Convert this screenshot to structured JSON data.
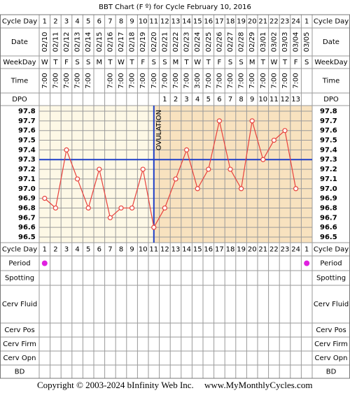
{
  "chart_data": {
    "type": "line",
    "title": "BBT Chart (F º) for Cycle February 10, 2016",
    "row_labels": {
      "cycle_day": "Cycle Day",
      "date": "Date",
      "weekday": "WeekDay",
      "time": "Time",
      "dpo": "DPO",
      "period": "Period",
      "spotting": "Spotting",
      "cerv_fluid": "Cerv Fluid",
      "cerv_pos": "Cerv Pos",
      "cerv_firm": "Cerv Firm",
      "cerv_opn": "Cerv Opn",
      "bd": "BD"
    },
    "categories": [
      1,
      2,
      3,
      4,
      5,
      6,
      7,
      8,
      9,
      10,
      11,
      12,
      13,
      14,
      15,
      16,
      17,
      18,
      19,
      20,
      21,
      22,
      23,
      24,
      1
    ],
    "dates": [
      "02/10",
      "02/11",
      "02/12",
      "02/13",
      "02/14",
      "02/15",
      "02/16",
      "02/17",
      "02/18",
      "02/19",
      "02/20",
      "02/21",
      "02/22",
      "02/23",
      "02/24",
      "02/25",
      "02/26",
      "02/27",
      "02/28",
      "02/29",
      "03/01",
      "03/02",
      "03/03",
      "03/04",
      "03/05"
    ],
    "weekdays": [
      "W",
      "T",
      "F",
      "S",
      "S",
      "M",
      "T",
      "W",
      "T",
      "F",
      "S",
      "S",
      "M",
      "T",
      "W",
      "T",
      "F",
      "S",
      "S",
      "M",
      "T",
      "W",
      "T",
      "F",
      "S"
    ],
    "times": [
      "7:00",
      "7:00",
      "7:00",
      "7:00",
      "7:00",
      null,
      "7:00",
      "7:00",
      "7:00",
      "7:00",
      "7:00",
      "7:00",
      "7:00",
      "7:00",
      "3:00",
      "7:00",
      "7:00",
      "7:00",
      "7:00",
      "7:00",
      "7:00",
      "7:00",
      "7:00",
      "7:00",
      null
    ],
    "dpo": [
      null,
      null,
      null,
      null,
      null,
      null,
      null,
      null,
      null,
      null,
      null,
      1,
      2,
      3,
      4,
      5,
      6,
      7,
      8,
      9,
      10,
      11,
      12,
      13,
      null
    ],
    "values": [
      96.9,
      96.8,
      97.4,
      97.1,
      96.8,
      97.2,
      96.7,
      96.8,
      96.8,
      97.2,
      96.6,
      96.8,
      97.1,
      97.4,
      97.0,
      97.2,
      97.7,
      97.2,
      97.0,
      97.7,
      97.3,
      97.5,
      97.6,
      97.0,
      null
    ],
    "color": "#e8413c",
    "ylim": [
      96.5,
      97.8
    ],
    "yticks": [
      97.8,
      97.7,
      97.6,
      97.5,
      97.4,
      97.3,
      97.2,
      97.1,
      {
        "value": 97.0,
        "label": "97.0"
      },
      96.9,
      96.8,
      96.7,
      96.6,
      96.5
    ],
    "coverline": 97.3,
    "coverline_color": "#1f3fc8",
    "ovulation": {
      "label": "OVULATION",
      "day": 11
    },
    "period": [
      true,
      false,
      false,
      false,
      false,
      false,
      false,
      false,
      false,
      false,
      false,
      false,
      false,
      false,
      false,
      false,
      false,
      false,
      false,
      false,
      false,
      false,
      false,
      false,
      true
    ],
    "period_color": "#e020e0",
    "footer": [
      "Copyright © 2003-2024 bInfinity Web Inc.",
      "www.MyMonthlyCycles.com"
    ]
  }
}
